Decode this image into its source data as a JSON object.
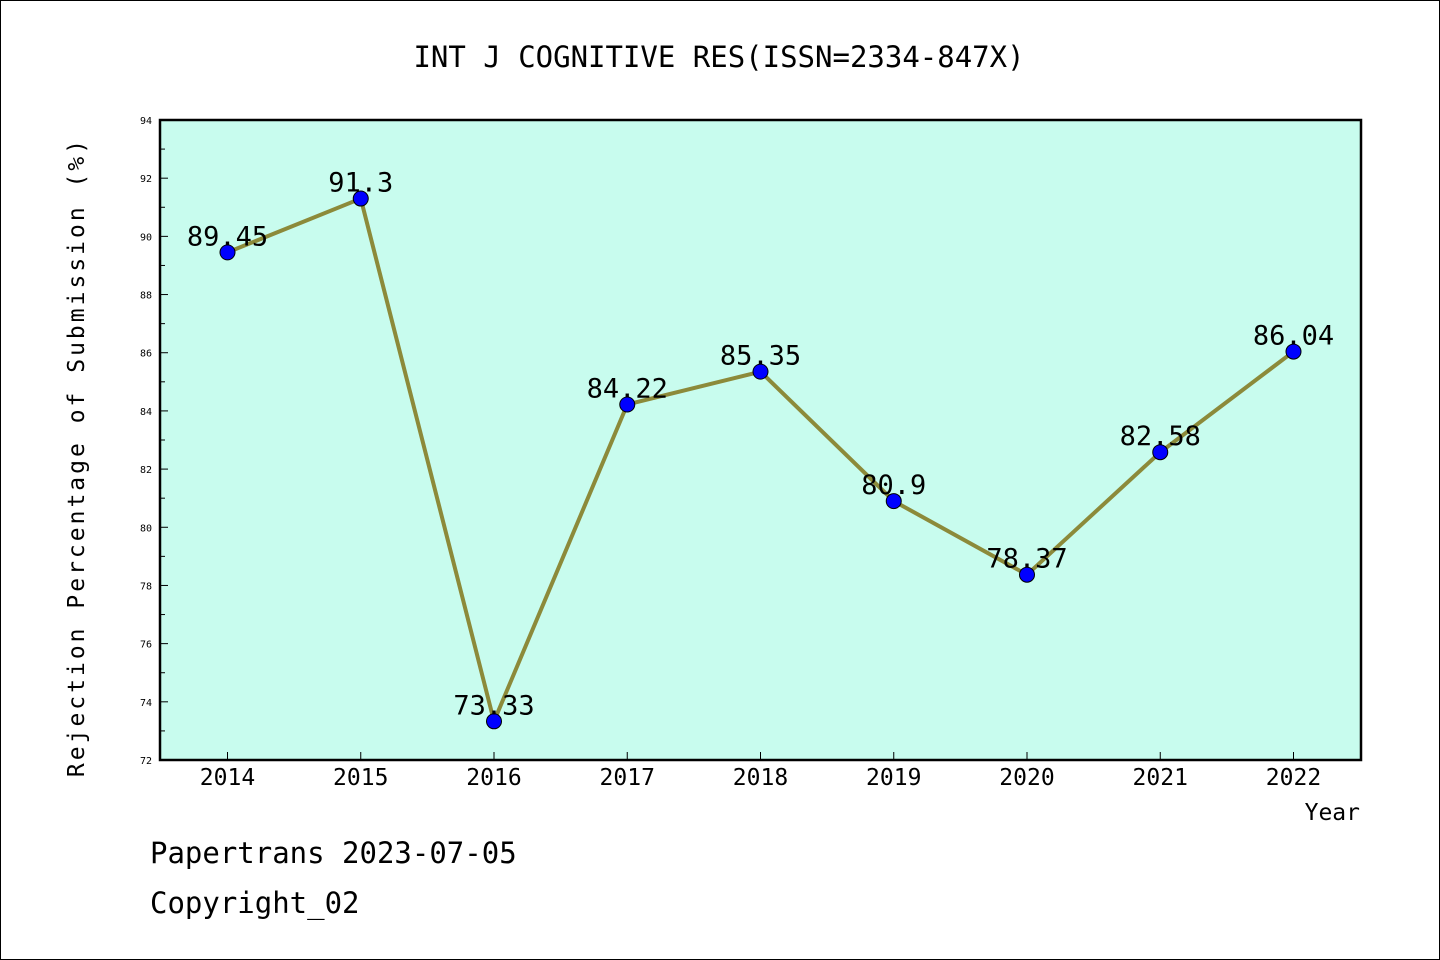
{
  "chart_data": {
    "type": "line",
    "title": "INT J COGNITIVE RES(ISSN=2334-847X)",
    "xlabel": "Year",
    "ylabel": "Rejection Percentage of Submission (%)",
    "categories": [
      "2014",
      "2015",
      "2016",
      "2017",
      "2018",
      "2019",
      "2020",
      "2021",
      "2022"
    ],
    "series": [
      {
        "values": [
          89.45,
          91.3,
          73.33,
          84.22,
          85.35,
          80.9,
          78.37,
          82.58,
          86.04
        ],
        "labels": [
          "89.45",
          "91.3",
          "73.33",
          "84.22",
          "85.35",
          "80.9",
          "78.37",
          "82.58",
          "86.04"
        ]
      }
    ],
    "ylim": [
      72,
      94
    ],
    "yticks": [
      "72",
      "74",
      "76",
      "78",
      "80",
      "82",
      "84",
      "86",
      "88",
      "90",
      "92",
      "94"
    ],
    "grid": false,
    "legend": "none",
    "colors": {
      "plot_background": "#c8fcee",
      "line": "#8c8a3a",
      "marker": "#0000ff"
    }
  },
  "footer": {
    "line1": "Papertrans 2023-07-05",
    "line2": "Copyright_02"
  }
}
